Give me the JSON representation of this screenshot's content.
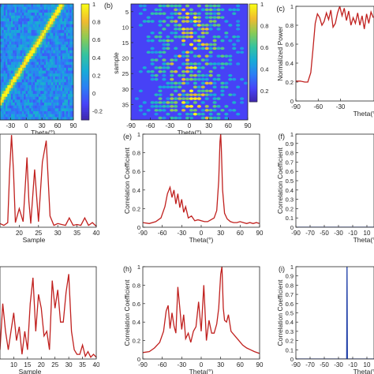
{
  "colors": {
    "line_red": "#c0201e",
    "line_blue": "#1f3fa8",
    "axis": "#262626",
    "colormap": [
      "#3e26a8",
      "#4743f8",
      "#2c7ef5",
      "#17abd8",
      "#35c3a0",
      "#8acb55",
      "#f1ba2f",
      "#f9fb15"
    ]
  },
  "chart_data": [
    {
      "panel": "a",
      "type": "heatmap",
      "xlabel": "Theta(°)",
      "ylabel": "",
      "xticks": [
        "-30",
        "0",
        "30",
        "60",
        "90"
      ],
      "colorbar": {
        "ticks": [
          "1",
          "0.8",
          "0.6",
          "0.4",
          "0.2",
          "0",
          "-0.2"
        ],
        "range": [
          -0.3,
          1
        ]
      },
      "description": "correlation matrix with bright diagonal band"
    },
    {
      "panel": "b",
      "type": "heatmap",
      "label": "(b)",
      "xlabel": "Theta(°)",
      "ylabel": "sample",
      "xticks": [
        "-90",
        "-60",
        "-30",
        "0",
        "30",
        "60",
        "90"
      ],
      "yticks": [
        "5",
        "10",
        "15",
        "20",
        "25",
        "30",
        "35"
      ],
      "colorbar": {
        "ticks": [
          "1",
          "0.8",
          "0.6",
          "0.4",
          "0.2"
        ],
        "range": [
          0.1,
          1
        ]
      }
    },
    {
      "panel": "c",
      "type": "line",
      "label": "(c)",
      "xlabel": "Theta(°)",
      "ylabel": "Normalized Power",
      "xticks": [
        "-90",
        "-60",
        "-30"
      ],
      "xlim": [
        -90,
        15
      ],
      "ylim": [
        0,
        1
      ],
      "yticks": [
        "0",
        "0.2",
        "0.4",
        "0.6",
        "0.8",
        "1"
      ],
      "x": [
        -90,
        -84,
        -78,
        -74,
        -70,
        -67,
        -64,
        -61,
        -58,
        -55,
        -52,
        -49,
        -46,
        -43,
        -40,
        -37,
        -34,
        -31,
        -28,
        -25,
        -22,
        -19,
        -16,
        -13,
        -10,
        -7,
        -4,
        -1,
        2,
        5,
        8,
        11,
        14
      ],
      "y": [
        0.21,
        0.21,
        0.2,
        0.2,
        0.3,
        0.55,
        0.82,
        0.92,
        0.88,
        0.8,
        0.84,
        0.93,
        0.86,
        0.96,
        0.78,
        0.82,
        0.93,
        1.0,
        0.9,
        0.98,
        0.85,
        0.95,
        0.8,
        0.88,
        0.82,
        0.93,
        0.8,
        0.9,
        0.76,
        0.92,
        0.82,
        0.94,
        0.88
      ]
    },
    {
      "panel": "d",
      "type": "line",
      "xlabel": "Sample",
      "ylabel": "",
      "xticks": [
        "20",
        "25",
        "30",
        "35",
        "40"
      ],
      "xlim": [
        15,
        40
      ],
      "ylim": [
        0,
        1
      ],
      "x": [
        15,
        16,
        17,
        17.5,
        18,
        18.5,
        19,
        20,
        21,
        22,
        22.5,
        23,
        24,
        25,
        26,
        27,
        28,
        29,
        30,
        31,
        32,
        33,
        34,
        35,
        36,
        37,
        38,
        39,
        40
      ],
      "y": [
        0.04,
        0.02,
        0.05,
        0.6,
        0.99,
        0.6,
        0.05,
        0.2,
        0.06,
        0.75,
        0.28,
        0.04,
        0.62,
        0.06,
        0.7,
        0.93,
        0.12,
        0.02,
        0.04,
        0.03,
        0.02,
        0.1,
        0.02,
        0.03,
        0.02,
        0.1,
        0.02,
        0.05,
        0.01
      ]
    },
    {
      "panel": "e",
      "type": "line",
      "label": "(e)",
      "xlabel": "Theta(°)",
      "ylabel": "Correlation Coefficient",
      "xticks": [
        "-90",
        "-60",
        "-30",
        "0",
        "30",
        "60",
        "90"
      ],
      "xlim": [
        -90,
        90
      ],
      "ylim": [
        0,
        1
      ],
      "yticks": [
        "0",
        "0.2",
        "0.4",
        "0.6",
        "0.8",
        "1"
      ],
      "x": [
        -90,
        -80,
        -70,
        -62,
        -56,
        -52,
        -48,
        -45,
        -42,
        -39,
        -36,
        -33,
        -30,
        -27,
        -24,
        -20,
        -15,
        -10,
        -5,
        0,
        5,
        10,
        15,
        20,
        24,
        27,
        29,
        30,
        31,
        33,
        36,
        40,
        45,
        50,
        55,
        60,
        65,
        70,
        75,
        80,
        85,
        90
      ],
      "y": [
        0.05,
        0.04,
        0.06,
        0.1,
        0.22,
        0.36,
        0.43,
        0.32,
        0.4,
        0.25,
        0.36,
        0.21,
        0.3,
        0.16,
        0.22,
        0.1,
        0.12,
        0.07,
        0.08,
        0.07,
        0.06,
        0.06,
        0.08,
        0.1,
        0.18,
        0.5,
        0.92,
        1.0,
        0.85,
        0.4,
        0.15,
        0.09,
        0.06,
        0.05,
        0.05,
        0.06,
        0.05,
        0.04,
        0.05,
        0.04,
        0.05,
        0.04
      ]
    },
    {
      "panel": "f",
      "type": "line",
      "label": "(f)",
      "xlabel": "Theta(°)",
      "ylabel": "Correlation Coefficient",
      "xticks": [
        "-90",
        "-70",
        "-50",
        "-30",
        "-10",
        "10"
      ],
      "xlim": [
        -90,
        20
      ],
      "ylim": [
        0,
        1
      ],
      "yticks": [
        "0",
        "0.1",
        "0.2",
        "0.3",
        "0.4",
        "0.5",
        "0.6",
        "0.7",
        "0.8",
        "0.9",
        "1"
      ],
      "x": [
        -90,
        20
      ],
      "y": [
        0,
        0
      ]
    },
    {
      "panel": "g",
      "type": "line",
      "xlabel": "Sample",
      "ylabel": "",
      "xticks": [
        "10",
        "15",
        "20",
        "25",
        "30",
        "35",
        "40"
      ],
      "xlim": [
        5,
        40
      ],
      "ylim": [
        0,
        1
      ],
      "x": [
        5,
        6,
        7,
        8,
        9,
        10,
        11,
        12,
        13,
        14,
        15,
        16,
        17,
        18,
        19,
        20,
        21,
        22,
        23,
        24,
        25,
        26,
        27,
        28,
        29,
        30,
        31,
        32,
        33,
        34,
        35,
        36,
        37,
        38,
        39,
        40
      ],
      "y": [
        0.1,
        0.6,
        0.3,
        0.1,
        0.3,
        0.5,
        0.2,
        0.35,
        0.05,
        0.3,
        0.1,
        0.6,
        0.88,
        0.3,
        0.7,
        0.55,
        0.25,
        0.3,
        0.1,
        0.85,
        0.55,
        0.75,
        0.4,
        0.4,
        0.72,
        0.92,
        0.3,
        0.1,
        0.05,
        0.05,
        0.15,
        0.03,
        0.08,
        0.02,
        0.05,
        0.02
      ]
    },
    {
      "panel": "h",
      "type": "line",
      "label": "(h)",
      "xlabel": "Theta(°)",
      "ylabel": "Correlation Coefficient",
      "xticks": [
        "-90",
        "-60",
        "-30",
        "0",
        "30",
        "60",
        "90"
      ],
      "xlim": [
        -90,
        90
      ],
      "ylim": [
        0,
        1
      ],
      "yticks": [
        "0",
        "0.2",
        "0.4",
        "0.6",
        "0.8",
        "1"
      ],
      "x": [
        -90,
        -80,
        -72,
        -64,
        -58,
        -54,
        -51,
        -48,
        -45,
        -42,
        -39,
        -36,
        -33,
        -30,
        -27,
        -24,
        -20,
        -16,
        -12,
        -8,
        -4,
        0,
        4,
        8,
        12,
        16,
        20,
        24,
        27,
        30,
        32,
        34,
        36,
        39,
        42,
        46,
        52,
        58,
        64,
        70,
        76,
        82,
        90
      ],
      "y": [
        0.07,
        0.08,
        0.12,
        0.18,
        0.3,
        0.52,
        0.58,
        0.33,
        0.5,
        0.36,
        0.28,
        0.78,
        0.55,
        0.32,
        0.48,
        0.22,
        0.28,
        0.18,
        0.3,
        0.35,
        0.62,
        0.3,
        0.8,
        0.2,
        0.42,
        0.28,
        0.28,
        0.38,
        0.55,
        0.92,
        1.0,
        0.55,
        0.42,
        0.4,
        0.48,
        0.3,
        0.25,
        0.2,
        0.15,
        0.12,
        0.1,
        0.08,
        0.06
      ]
    },
    {
      "panel": "i",
      "type": "line",
      "label": "(i)",
      "xlabel": "Theta(°)",
      "ylabel": "Correlation Coefficient",
      "xticks": [
        "-90",
        "-70",
        "-50",
        "-30",
        "-10",
        "10"
      ],
      "xlim": [
        -90,
        20
      ],
      "ylim": [
        0,
        1
      ],
      "yticks": [
        "0",
        "0.1",
        "0.2",
        "0.3",
        "0.4",
        "0.5",
        "0.6",
        "0.7",
        "0.8",
        "0.9",
        "1"
      ],
      "x": [
        -90,
        -18.5,
        -18,
        -17.5,
        20
      ],
      "y": [
        0,
        0,
        1,
        0,
        0
      ]
    }
  ]
}
